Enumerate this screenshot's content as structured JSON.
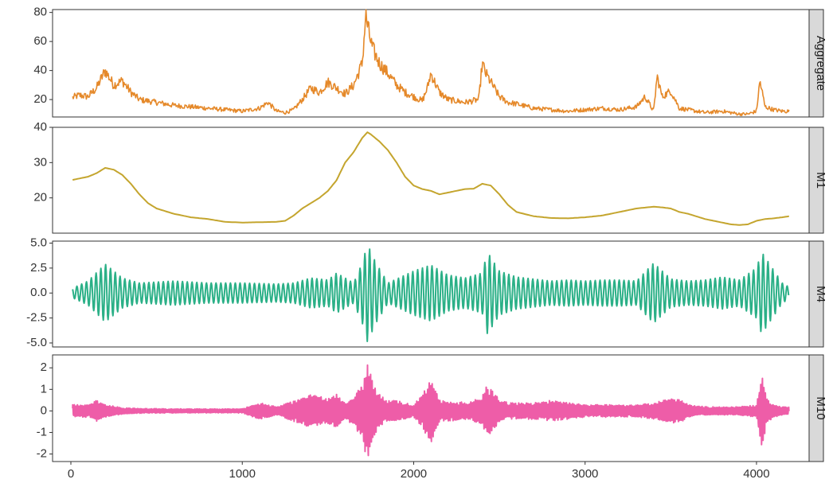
{
  "chart_data": {
    "type": "line",
    "layout": "faceted-vertical",
    "shared_x": {
      "range": [
        0,
        4200
      ],
      "ticks": [
        0,
        1000,
        2000,
        3000,
        4000
      ],
      "tick_labels": [
        "0",
        "1000",
        "2000",
        "3000",
        "4000"
      ]
    },
    "grid": false,
    "panels": [
      {
        "strip_label": "Aggregate",
        "color": "#E5892A",
        "ylim": [
          8,
          82
        ],
        "yticks": [
          20,
          40,
          60,
          80
        ],
        "ytick_labels": [
          "20",
          "40",
          "60",
          "80"
        ],
        "x": [
          0,
          50,
          100,
          150,
          200,
          250,
          300,
          350,
          400,
          500,
          600,
          700,
          800,
          900,
          1000,
          1100,
          1150,
          1200,
          1250,
          1300,
          1350,
          1400,
          1450,
          1500,
          1550,
          1600,
          1650,
          1700,
          1720,
          1740,
          1760,
          1800,
          1850,
          1900,
          1950,
          2000,
          2050,
          2080,
          2100,
          2150,
          2200,
          2300,
          2380,
          2400,
          2420,
          2450,
          2500,
          2550,
          2600,
          2700,
          2800,
          2900,
          3000,
          3100,
          3200,
          3300,
          3350,
          3400,
          3420,
          3450,
          3500,
          3550,
          3600,
          3700,
          3800,
          3900,
          3950,
          4000,
          4020,
          4050,
          4100,
          4150,
          4190
        ],
        "values": [
          21,
          23,
          22,
          28,
          40,
          30,
          33,
          25,
          20,
          18,
          16,
          15,
          14,
          13,
          12,
          14,
          18,
          12,
          11,
          13,
          20,
          28,
          25,
          32,
          28,
          24,
          30,
          45,
          78,
          65,
          55,
          45,
          38,
          30,
          25,
          22,
          19,
          28,
          38,
          25,
          20,
          18,
          20,
          45,
          38,
          32,
          22,
          18,
          17,
          14,
          13,
          12,
          13,
          14,
          13,
          15,
          22,
          12,
          36,
          22,
          26,
          14,
          13,
          11,
          12,
          10,
          10,
          12,
          33,
          15,
          13,
          12,
          12
        ]
      },
      {
        "strip_label": "M1",
        "color": "#C4A52E",
        "ylim": [
          10,
          40
        ],
        "yticks": [
          20,
          30,
          40
        ],
        "ytick_labels": [
          "20",
          "30",
          "40"
        ],
        "x": [
          0,
          50,
          100,
          150,
          200,
          250,
          300,
          350,
          400,
          450,
          500,
          600,
          700,
          800,
          900,
          1000,
          1100,
          1200,
          1250,
          1300,
          1350,
          1400,
          1450,
          1500,
          1550,
          1600,
          1650,
          1700,
          1730,
          1750,
          1800,
          1850,
          1900,
          1950,
          2000,
          2050,
          2100,
          2150,
          2200,
          2250,
          2300,
          2350,
          2400,
          2450,
          2500,
          2550,
          2600,
          2700,
          2800,
          2900,
          3000,
          3100,
          3200,
          3300,
          3400,
          3450,
          3500,
          3550,
          3600,
          3700,
          3800,
          3850,
          3900,
          3950,
          4000,
          4050,
          4100,
          4150,
          4190
        ],
        "values": [
          25,
          25.5,
          26,
          27,
          28.5,
          28,
          26.5,
          24,
          21,
          18.5,
          17,
          15.5,
          14.5,
          14,
          13.2,
          13,
          13.1,
          13.2,
          13.5,
          15,
          17,
          18.5,
          20,
          22,
          25,
          30,
          33,
          37,
          38.6,
          38,
          36,
          33.5,
          30,
          26,
          23.5,
          22.5,
          22,
          21,
          21.5,
          22,
          22.5,
          22.6,
          24,
          23.5,
          21,
          18,
          16,
          14.8,
          14.3,
          14.2,
          14.5,
          15,
          16,
          17,
          17.5,
          17.3,
          17,
          16,
          15.5,
          14,
          13,
          12.5,
          12.3,
          12.5,
          13.5,
          14,
          14.2,
          14.5,
          14.8
        ]
      },
      {
        "strip_label": "M4",
        "color": "#2BB087",
        "ylim": [
          -5.4,
          5.2
        ],
        "yticks": [
          -5.0,
          -2.5,
          0.0,
          2.5,
          5.0
        ],
        "ytick_labels": [
          "-5.0",
          "-2.5",
          "0.0",
          "2.5",
          "5.0"
        ],
        "envelope_x": [
          0,
          100,
          200,
          300,
          400,
          600,
          800,
          1000,
          1200,
          1300,
          1400,
          1500,
          1550,
          1650,
          1700,
          1730,
          1780,
          1850,
          1900,
          2000,
          2100,
          2200,
          2300,
          2400,
          2430,
          2500,
          2600,
          2700,
          2800,
          2900,
          3000,
          3100,
          3200,
          3300,
          3400,
          3500,
          3600,
          3700,
          3800,
          3900,
          4000,
          4030,
          4100,
          4150,
          4190
        ],
        "envelope_amplitude": [
          0.4,
          1.2,
          2.9,
          1.5,
          1.0,
          1.2,
          1.0,
          1.0,
          0.9,
          1.0,
          1.5,
          1.3,
          2.0,
          1.0,
          3.0,
          4.9,
          3.0,
          1.0,
          1.4,
          2.2,
          2.8,
          1.8,
          1.5,
          2.0,
          4.1,
          2.2,
          1.6,
          1.4,
          1.2,
          1.3,
          1.2,
          1.3,
          1.3,
          1.2,
          3.0,
          1.4,
          1.2,
          1.3,
          1.6,
          1.3,
          2.5,
          4.1,
          2.3,
          1.0,
          0.6
        ],
        "period": 28
      },
      {
        "strip_label": "M10",
        "color": "#EE5DA8",
        "ylim": [
          -2.35,
          2.6
        ],
        "yticks": [
          -2,
          -1,
          0,
          1,
          2
        ],
        "ytick_labels": [
          "-2",
          "-1",
          "0",
          "1",
          "2"
        ],
        "envelope_x": [
          0,
          100,
          150,
          200,
          300,
          400,
          600,
          800,
          1000,
          1100,
          1200,
          1300,
          1400,
          1500,
          1550,
          1600,
          1650,
          1700,
          1730,
          1750,
          1800,
          1850,
          1900,
          2000,
          2050,
          2100,
          2150,
          2200,
          2300,
          2350,
          2400,
          2430,
          2500,
          2550,
          2600,
          2700,
          2800,
          2900,
          3000,
          3100,
          3200,
          3300,
          3400,
          3500,
          3550,
          3600,
          3700,
          3800,
          3900,
          4000,
          4030,
          4060,
          4100,
          4150,
          4190
        ],
        "envelope_amplitude": [
          0.3,
          0.3,
          0.5,
          0.3,
          0.15,
          0.12,
          0.1,
          0.1,
          0.1,
          0.4,
          0.2,
          0.5,
          0.8,
          0.6,
          0.8,
          0.4,
          0.7,
          1.4,
          2.5,
          1.8,
          0.8,
          0.5,
          0.5,
          0.3,
          0.8,
          1.6,
          0.5,
          0.5,
          0.4,
          0.5,
          0.7,
          1.3,
          0.6,
          0.4,
          0.4,
          0.4,
          0.5,
          0.4,
          0.3,
          0.3,
          0.3,
          0.3,
          0.4,
          0.6,
          0.6,
          0.3,
          0.2,
          0.2,
          0.2,
          0.3,
          2.0,
          0.6,
          0.3,
          0.2,
          0.2
        ],
        "period": 9
      }
    ]
  }
}
